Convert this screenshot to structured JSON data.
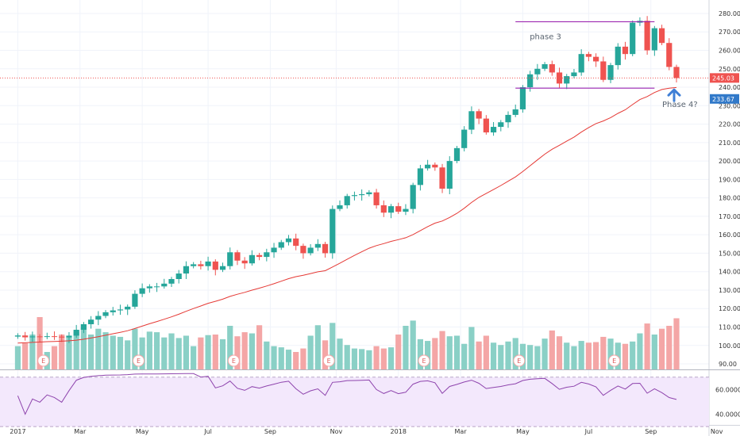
{
  "chart_data": {
    "type": "candlestick",
    "price_axis": {
      "ylim": [
        87,
        283
      ],
      "ticks": [
        "280.00",
        "270.00",
        "260.00",
        "250.00",
        "240.00",
        "230.00",
        "220.00",
        "210.00",
        "200.00",
        "190.00",
        "180.00",
        "170.00",
        "160.00",
        "150.00",
        "140.00",
        "130.00",
        "120.00",
        "110.00",
        "100.00",
        "90.00"
      ],
      "tick_values": [
        280,
        270,
        260,
        250,
        240,
        230,
        220,
        210,
        200,
        190,
        180,
        170,
        160,
        150,
        140,
        130,
        120,
        110,
        100,
        90
      ],
      "grid": true
    },
    "rsi_axis": {
      "ylim": [
        32,
        75
      ],
      "ticks": [
        "60.0000",
        "40.0000"
      ],
      "tick_values": [
        60,
        40
      ],
      "upper_band": 70,
      "lower_band": 30
    },
    "x_axis": {
      "week_range": [
        -2,
        90
      ],
      "ticks": [
        "2017",
        "Mar",
        "May",
        "Jul",
        "Sep",
        "Nov",
        "2018",
        "Mar",
        "May",
        "Jul",
        "Sep",
        "Nov"
      ],
      "tick_weeks": [
        0,
        8.5,
        17,
        26,
        34.5,
        43.5,
        52,
        60.5,
        69,
        78,
        86.5,
        95.5
      ]
    },
    "current_price": "245.03",
    "current_price_value": 245.03,
    "secondary_price": "233.67",
    "secondary_price_value": 233.67,
    "annotations": {
      "phase3": "phase 3",
      "phase4": "Phase 4?"
    },
    "earnings_label": "E",
    "earnings_weeks": [
      3.5,
      16.5,
      29.5,
      42.5,
      55.5,
      68.5,
      81.5
    ],
    "phase3_top": 275.5,
    "phase3_bottom": 239.5,
    "phase3_weeks": [
      68,
      87
    ],
    "closes": [
      105.4,
      104.4,
      104.9,
      104.6,
      105.0,
      104.8,
      104.3,
      105.3,
      108.5,
      111.5,
      114.0,
      116.0,
      118.0,
      119.0,
      119.5,
      121.0,
      128.0,
      131.0,
      132.0,
      132.0,
      133.5,
      136.0,
      139.0,
      143.0,
      144.0,
      143.0,
      145.5,
      141.0,
      143.0,
      150.5,
      146.0,
      144.5,
      149.0,
      148.0,
      150.5,
      153.0,
      156.0,
      158.0,
      154.0,
      150.0,
      153.0,
      155.0,
      150.0,
      174.0,
      176.0,
      181.0,
      181.5,
      182.0,
      183.0,
      176.0,
      172.0,
      175.5,
      172.5,
      174.0,
      187.0,
      196.0,
      198.0,
      196.5,
      185.0,
      200.0,
      207.0,
      217.0,
      227.0,
      223.0,
      215.5,
      218.5,
      221.0,
      225.0,
      228.0,
      240.0,
      247.0,
      250.0,
      252.5,
      248.0,
      242.0,
      246.0,
      248.0,
      258.0,
      256.5,
      254.0,
      244.0,
      252.0,
      262.0,
      258.0,
      275.0,
      276.0,
      260.0,
      272.0,
      264.0,
      251.0,
      245.0
    ],
    "ma_start": 101.0,
    "volume_axis_max": 150,
    "volume": [
      40,
      45,
      60,
      90,
      30,
      40,
      60,
      55,
      65,
      72,
      60,
      70,
      64,
      58,
      56,
      50,
      70,
      55,
      65,
      64,
      55,
      62,
      54,
      58,
      40,
      55,
      59,
      60,
      52,
      75,
      57,
      64,
      62,
      76,
      48,
      40,
      38,
      34,
      30,
      36,
      58,
      76,
      50,
      80,
      53,
      42,
      36,
      35,
      33,
      40,
      36,
      38,
      60,
      75,
      84,
      52,
      49,
      54,
      66,
      57,
      58,
      44,
      73,
      48,
      58,
      46,
      42,
      48,
      54,
      44,
      42,
      40,
      53,
      67,
      57,
      46,
      40,
      49,
      46,
      47,
      56,
      53,
      46,
      44,
      48,
      62,
      79,
      60,
      70,
      75,
      88
    ]
  }
}
